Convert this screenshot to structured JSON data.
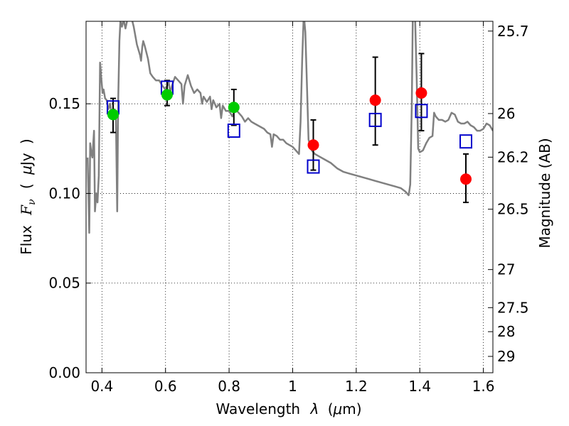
{
  "chart_data": {
    "type": "scatter",
    "title": "",
    "xlabel_parts": [
      "Wavelength",
      "λ",
      "(",
      "μ",
      "m)"
    ],
    "ylabel_parts": [
      "Flux",
      "F",
      "ν",
      "(",
      "μ",
      "Jy",
      ")"
    ],
    "y2label": "Magnitude (AB)",
    "xlim": [
      0.35,
      1.63
    ],
    "ylim": [
      0.0,
      0.196
    ],
    "grid": true,
    "x_ticks": [
      {
        "value": 0.4,
        "label": "0.4"
      },
      {
        "value": 0.6,
        "label": "0.6"
      },
      {
        "value": 0.8,
        "label": "0.8"
      },
      {
        "value": 1.0,
        "label": "1"
      },
      {
        "value": 1.2,
        "label": "1.2"
      },
      {
        "value": 1.4,
        "label": "1.4"
      },
      {
        "value": 1.6,
        "label": "1.6"
      }
    ],
    "y_ticks": [
      {
        "value": 0.0,
        "label": "0.00"
      },
      {
        "value": 0.05,
        "label": "0.05"
      },
      {
        "value": 0.1,
        "label": "0.10"
      },
      {
        "value": 0.15,
        "label": "0.15"
      }
    ],
    "y2_ticks": [
      {
        "mag": 25.7,
        "label": "25.7"
      },
      {
        "mag": 26.0,
        "label": "26"
      },
      {
        "mag": 26.2,
        "label": "26.2"
      },
      {
        "mag": 26.5,
        "label": "26.5"
      },
      {
        "mag": 27.0,
        "label": "27"
      },
      {
        "mag": 27.5,
        "label": "27.5"
      },
      {
        "mag": 28.0,
        "label": "28"
      },
      {
        "mag": 29.0,
        "label": "29"
      }
    ],
    "model_spectrum": {
      "color": "#808080",
      "points": [
        [
          0.355,
          0.12
        ],
        [
          0.36,
          0.078
        ],
        [
          0.363,
          0.128
        ],
        [
          0.367,
          0.122
        ],
        [
          0.37,
          0.12
        ],
        [
          0.375,
          0.135
        ],
        [
          0.378,
          0.09
        ],
        [
          0.382,
          0.1
        ],
        [
          0.386,
          0.095
        ],
        [
          0.39,
          0.11
        ],
        [
          0.394,
          0.173
        ],
        [
          0.398,
          0.164
        ],
        [
          0.402,
          0.156
        ],
        [
          0.405,
          0.158
        ],
        [
          0.41,
          0.153
        ],
        [
          0.415,
          0.152
        ],
        [
          0.42,
          0.147
        ],
        [
          0.426,
          0.15
        ],
        [
          0.432,
          0.142
        ],
        [
          0.436,
          0.145
        ],
        [
          0.44,
          0.147
        ],
        [
          0.444,
          0.141
        ],
        [
          0.448,
          0.09
        ],
        [
          0.451,
          0.15
        ],
        [
          0.455,
          0.185
        ],
        [
          0.458,
          0.196
        ],
        [
          0.463,
          0.193
        ],
        [
          0.468,
          0.197
        ],
        [
          0.474,
          0.192
        ],
        [
          0.48,
          0.197
        ],
        [
          0.49,
          0.2
        ],
        [
          0.5,
          0.193
        ],
        [
          0.51,
          0.183
        ],
        [
          0.52,
          0.177
        ],
        [
          0.523,
          0.174
        ],
        [
          0.527,
          0.182
        ],
        [
          0.53,
          0.185
        ],
        [
          0.535,
          0.182
        ],
        [
          0.545,
          0.175
        ],
        [
          0.552,
          0.167
        ],
        [
          0.56,
          0.165
        ],
        [
          0.57,
          0.163
        ],
        [
          0.58,
          0.163
        ],
        [
          0.59,
          0.16
        ],
        [
          0.6,
          0.158
        ],
        [
          0.61,
          0.162
        ],
        [
          0.615,
          0.156
        ],
        [
          0.62,
          0.16
        ],
        [
          0.63,
          0.165
        ],
        [
          0.64,
          0.163
        ],
        [
          0.65,
          0.161
        ],
        [
          0.655,
          0.15
        ],
        [
          0.66,
          0.16
        ],
        [
          0.67,
          0.166
        ],
        [
          0.68,
          0.16
        ],
        [
          0.69,
          0.156
        ],
        [
          0.7,
          0.158
        ],
        [
          0.71,
          0.156
        ],
        [
          0.715,
          0.15
        ],
        [
          0.72,
          0.154
        ],
        [
          0.73,
          0.151
        ],
        [
          0.74,
          0.154
        ],
        [
          0.745,
          0.147
        ],
        [
          0.75,
          0.152
        ],
        [
          0.76,
          0.148
        ],
        [
          0.77,
          0.15
        ],
        [
          0.775,
          0.142
        ],
        [
          0.78,
          0.149
        ],
        [
          0.79,
          0.146
        ],
        [
          0.8,
          0.146
        ],
        [
          0.81,
          0.143
        ],
        [
          0.82,
          0.147
        ],
        [
          0.83,
          0.145
        ],
        [
          0.84,
          0.143
        ],
        [
          0.85,
          0.14
        ],
        [
          0.86,
          0.142
        ],
        [
          0.87,
          0.14
        ],
        [
          0.88,
          0.139
        ],
        [
          0.89,
          0.138
        ],
        [
          0.9,
          0.137
        ],
        [
          0.91,
          0.136
        ],
        [
          0.92,
          0.134
        ],
        [
          0.93,
          0.133
        ],
        [
          0.935,
          0.126
        ],
        [
          0.94,
          0.133
        ],
        [
          0.95,
          0.132
        ],
        [
          0.96,
          0.13
        ],
        [
          0.97,
          0.13
        ],
        [
          0.98,
          0.128
        ],
        [
          0.99,
          0.127
        ],
        [
          1.0,
          0.126
        ],
        [
          1.01,
          0.124
        ],
        [
          1.02,
          0.122
        ],
        [
          1.025,
          0.14
        ],
        [
          1.03,
          0.175
        ],
        [
          1.035,
          0.2
        ],
        [
          1.04,
          0.19
        ],
        [
          1.045,
          0.16
        ],
        [
          1.05,
          0.13
        ],
        [
          1.06,
          0.124
        ],
        [
          1.07,
          0.122
        ],
        [
          1.08,
          0.121
        ],
        [
          1.1,
          0.119
        ],
        [
          1.12,
          0.117
        ],
        [
          1.14,
          0.114
        ],
        [
          1.16,
          0.112
        ],
        [
          1.18,
          0.111
        ],
        [
          1.2,
          0.11
        ],
        [
          1.22,
          0.109
        ],
        [
          1.24,
          0.108
        ],
        [
          1.26,
          0.107
        ],
        [
          1.28,
          0.106
        ],
        [
          1.3,
          0.105
        ],
        [
          1.32,
          0.104
        ],
        [
          1.34,
          0.103
        ],
        [
          1.355,
          0.101
        ],
        [
          1.365,
          0.099
        ],
        [
          1.37,
          0.105
        ],
        [
          1.375,
          0.15
        ],
        [
          1.378,
          0.2
        ],
        [
          1.385,
          0.2
        ],
        [
          1.39,
          0.165
        ],
        [
          1.395,
          0.125
        ],
        [
          1.4,
          0.123
        ],
        [
          1.41,
          0.124
        ],
        [
          1.42,
          0.128
        ],
        [
          1.43,
          0.131
        ],
        [
          1.44,
          0.132
        ],
        [
          1.445,
          0.145
        ],
        [
          1.45,
          0.143
        ],
        [
          1.46,
          0.141
        ],
        [
          1.47,
          0.141
        ],
        [
          1.48,
          0.14
        ],
        [
          1.49,
          0.141
        ],
        [
          1.5,
          0.145
        ],
        [
          1.51,
          0.144
        ],
        [
          1.52,
          0.14
        ],
        [
          1.53,
          0.139
        ],
        [
          1.54,
          0.139
        ],
        [
          1.55,
          0.14
        ],
        [
          1.56,
          0.138
        ],
        [
          1.57,
          0.137
        ],
        [
          1.58,
          0.135
        ],
        [
          1.59,
          0.135
        ],
        [
          1.6,
          0.136
        ],
        [
          1.61,
          0.139
        ],
        [
          1.62,
          0.138
        ],
        [
          1.63,
          0.135
        ]
      ]
    },
    "series": [
      {
        "marker": "circle",
        "color": "#00cc00",
        "points": [
          {
            "x": 0.435,
            "y": 0.144,
            "err_low": 0.134,
            "err_high": 0.153
          },
          {
            "x": 0.605,
            "y": 0.155,
            "err_low": 0.149,
            "err_high": 0.163
          },
          {
            "x": 0.815,
            "y": 0.148,
            "err_low": 0.138,
            "err_high": 0.158
          }
        ]
      },
      {
        "marker": "circle",
        "color": "#ff0000",
        "points": [
          {
            "x": 1.065,
            "y": 0.127,
            "err_low": 0.113,
            "err_high": 0.141
          },
          {
            "x": 1.26,
            "y": 0.152,
            "err_low": 0.127,
            "err_high": 0.176
          },
          {
            "x": 1.405,
            "y": 0.156,
            "err_low": 0.135,
            "err_high": 0.178
          },
          {
            "x": 1.545,
            "y": 0.108,
            "err_low": 0.095,
            "err_high": 0.122
          }
        ]
      },
      {
        "marker": "square",
        "color": "#0000cc",
        "points": [
          {
            "x": 0.435,
            "y": 0.148
          },
          {
            "x": 0.605,
            "y": 0.159
          },
          {
            "x": 0.815,
            "y": 0.135
          },
          {
            "x": 1.065,
            "y": 0.115
          },
          {
            "x": 1.26,
            "y": 0.141
          },
          {
            "x": 1.405,
            "y": 0.146
          },
          {
            "x": 1.545,
            "y": 0.129
          }
        ]
      }
    ]
  }
}
